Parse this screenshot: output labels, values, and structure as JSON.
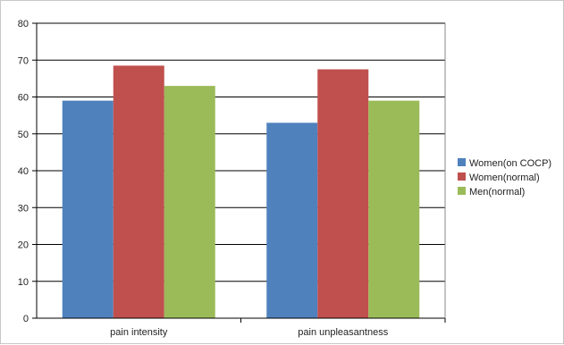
{
  "chart_data": {
    "type": "bar",
    "categories": [
      "pain intensity",
      "pain unpleasantness"
    ],
    "series": [
      {
        "name": "Women(on COCP)",
        "values": [
          59,
          53
        ],
        "color": "#4f81bd"
      },
      {
        "name": "Women(normal)",
        "values": [
          68.5,
          67.5
        ],
        "color": "#c0504d"
      },
      {
        "name": "Men(normal)",
        "values": [
          63,
          59
        ],
        "color": "#9bbb59"
      }
    ],
    "ylim": [
      0,
      80
    ],
    "yticks": [
      0,
      10,
      20,
      30,
      40,
      50,
      60,
      70,
      80
    ],
    "grid": true,
    "legend_position": "right"
  }
}
